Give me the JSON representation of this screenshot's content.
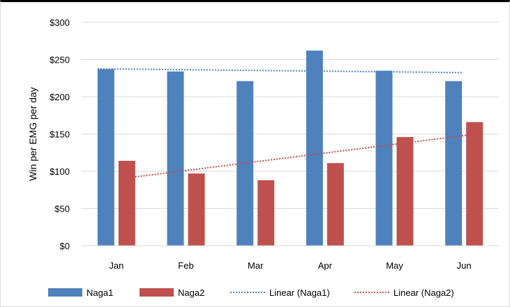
{
  "chart_data": {
    "type": "bar",
    "categories": [
      "Jan",
      "Feb",
      "Mar",
      "Apr",
      "May",
      "Jun"
    ],
    "series": [
      {
        "name": "Naga1",
        "values": [
          237,
          234,
          221,
          262,
          235,
          221
        ],
        "color": "#4f81bd"
      },
      {
        "name": "Naga2",
        "values": [
          114,
          97,
          88,
          111,
          146,
          166
        ],
        "color": "#c0504d"
      }
    ],
    "trendlines": [
      {
        "name": "Linear (Naga1)",
        "of": "Naga1",
        "type": "linear",
        "style": "dotted",
        "color": "#4f81bd"
      },
      {
        "name": "Linear (Naga2)",
        "of": "Naga2",
        "type": "linear",
        "style": "dotted",
        "color": "#c0504d"
      }
    ],
    "ylabel": "Win per EMG per day",
    "ylim": [
      0,
      300
    ],
    "yticks": [
      {
        "value": 0,
        "label": "$0"
      },
      {
        "value": 50,
        "label": "$50"
      },
      {
        "value": 100,
        "label": "$100"
      },
      {
        "value": 150,
        "label": "$150"
      },
      {
        "value": 200,
        "label": "$200"
      },
      {
        "value": 250,
        "label": "$250"
      },
      {
        "value": 300,
        "label": "$300"
      }
    ],
    "grid": true,
    "gridColor": "#d9d9d9",
    "legend": "bottom"
  }
}
